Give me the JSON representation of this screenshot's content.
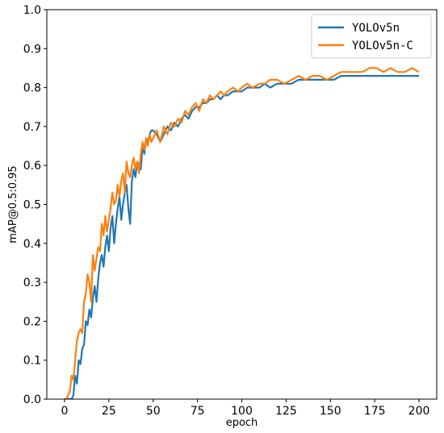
{
  "chart_data": {
    "type": "line",
    "xlabel": "epoch",
    "ylabel": "mAP@0.5:0.95",
    "xlim": [
      -10,
      210
    ],
    "ylim": [
      0.0,
      1.0
    ],
    "xticks": [
      "0",
      "25",
      "50",
      "75",
      "100",
      "125",
      "150",
      "175",
      "200"
    ],
    "yticks": [
      "0.0",
      "0.1",
      "0.2",
      "0.3",
      "0.4",
      "0.5",
      "0.6",
      "0.7",
      "0.8",
      "0.9",
      "1.0"
    ],
    "grid": false,
    "legend_position": "top-right",
    "series": [
      {
        "name": "YOLOv5n",
        "color": "#1f77b4",
        "points": [
          [
            0,
            0.0
          ],
          [
            2,
            0.0
          ],
          [
            3,
            0.0
          ],
          [
            4,
            0.0
          ],
          [
            5,
            0.01
          ],
          [
            6,
            0.06
          ],
          [
            7,
            0.04
          ],
          [
            8,
            0.1
          ],
          [
            9,
            0.09
          ],
          [
            10,
            0.13
          ],
          [
            11,
            0.14
          ],
          [
            12,
            0.2
          ],
          [
            13,
            0.19
          ],
          [
            14,
            0.23
          ],
          [
            15,
            0.21
          ],
          [
            16,
            0.26
          ],
          [
            17,
            0.29
          ],
          [
            18,
            0.25
          ],
          [
            19,
            0.31
          ],
          [
            20,
            0.35
          ],
          [
            21,
            0.37
          ],
          [
            22,
            0.34
          ],
          [
            23,
            0.39
          ],
          [
            24,
            0.42
          ],
          [
            25,
            0.38
          ],
          [
            26,
            0.44
          ],
          [
            27,
            0.47
          ],
          [
            28,
            0.4
          ],
          [
            29,
            0.45
          ],
          [
            30,
            0.49
          ],
          [
            31,
            0.52
          ],
          [
            32,
            0.46
          ],
          [
            33,
            0.5
          ],
          [
            34,
            0.53
          ],
          [
            35,
            0.55
          ],
          [
            36,
            0.49
          ],
          [
            37,
            0.45
          ],
          [
            38,
            0.56
          ],
          [
            39,
            0.59
          ],
          [
            40,
            0.57
          ],
          [
            41,
            0.61
          ],
          [
            42,
            0.6
          ],
          [
            43,
            0.59
          ],
          [
            44,
            0.65
          ],
          [
            45,
            0.63
          ],
          [
            46,
            0.67
          ],
          [
            47,
            0.66
          ],
          [
            48,
            0.68
          ],
          [
            49,
            0.69
          ],
          [
            50,
            0.69
          ],
          [
            52,
            0.68
          ],
          [
            54,
            0.66
          ],
          [
            56,
            0.68
          ],
          [
            58,
            0.7
          ],
          [
            60,
            0.69
          ],
          [
            62,
            0.71
          ],
          [
            64,
            0.7
          ],
          [
            66,
            0.72
          ],
          [
            68,
            0.73
          ],
          [
            70,
            0.72
          ],
          [
            72,
            0.74
          ],
          [
            74,
            0.75
          ],
          [
            76,
            0.75
          ],
          [
            78,
            0.76
          ],
          [
            80,
            0.76
          ],
          [
            82,
            0.77
          ],
          [
            84,
            0.77
          ],
          [
            86,
            0.78
          ],
          [
            88,
            0.77
          ],
          [
            90,
            0.78
          ],
          [
            92,
            0.78
          ],
          [
            95,
            0.79
          ],
          [
            98,
            0.79
          ],
          [
            100,
            0.79
          ],
          [
            103,
            0.8
          ],
          [
            106,
            0.8
          ],
          [
            110,
            0.8
          ],
          [
            113,
            0.81
          ],
          [
            116,
            0.8
          ],
          [
            120,
            0.81
          ],
          [
            124,
            0.81
          ],
          [
            128,
            0.81
          ],
          [
            132,
            0.82
          ],
          [
            136,
            0.82
          ],
          [
            140,
            0.82
          ],
          [
            144,
            0.82
          ],
          [
            148,
            0.82
          ],
          [
            152,
            0.82
          ],
          [
            156,
            0.83
          ],
          [
            160,
            0.83
          ],
          [
            164,
            0.83
          ],
          [
            168,
            0.83
          ],
          [
            172,
            0.83
          ],
          [
            176,
            0.83
          ],
          [
            180,
            0.83
          ],
          [
            184,
            0.83
          ],
          [
            188,
            0.83
          ],
          [
            192,
            0.83
          ],
          [
            196,
            0.83
          ],
          [
            200,
            0.83
          ]
        ]
      },
      {
        "name": "YOLOv5n-C",
        "color": "#ff7f0e",
        "points": [
          [
            0,
            0.0
          ],
          [
            1,
            0.0
          ],
          [
            2,
            0.01
          ],
          [
            3,
            0.02
          ],
          [
            4,
            0.06
          ],
          [
            5,
            0.05
          ],
          [
            6,
            0.1
          ],
          [
            7,
            0.15
          ],
          [
            8,
            0.17
          ],
          [
            9,
            0.18
          ],
          [
            10,
            0.17
          ],
          [
            11,
            0.25
          ],
          [
            12,
            0.27
          ],
          [
            13,
            0.32
          ],
          [
            14,
            0.3
          ],
          [
            15,
            0.25
          ],
          [
            16,
            0.37
          ],
          [
            17,
            0.33
          ],
          [
            18,
            0.36
          ],
          [
            19,
            0.39
          ],
          [
            20,
            0.38
          ],
          [
            21,
            0.45
          ],
          [
            22,
            0.42
          ],
          [
            23,
            0.47
          ],
          [
            24,
            0.43
          ],
          [
            25,
            0.46
          ],
          [
            26,
            0.49
          ],
          [
            27,
            0.53
          ],
          [
            28,
            0.5
          ],
          [
            29,
            0.51
          ],
          [
            30,
            0.55
          ],
          [
            31,
            0.52
          ],
          [
            32,
            0.56
          ],
          [
            33,
            0.58
          ],
          [
            34,
            0.53
          ],
          [
            35,
            0.61
          ],
          [
            36,
            0.58
          ],
          [
            37,
            0.57
          ],
          [
            38,
            0.6
          ],
          [
            39,
            0.62
          ],
          [
            40,
            0.59
          ],
          [
            41,
            0.61
          ],
          [
            42,
            0.58
          ],
          [
            43,
            0.63
          ],
          [
            44,
            0.66
          ],
          [
            45,
            0.64
          ],
          [
            46,
            0.67
          ],
          [
            47,
            0.65
          ],
          [
            48,
            0.68
          ],
          [
            49,
            0.66
          ],
          [
            50,
            0.67
          ],
          [
            52,
            0.69
          ],
          [
            54,
            0.66
          ],
          [
            56,
            0.7
          ],
          [
            58,
            0.68
          ],
          [
            60,
            0.71
          ],
          [
            62,
            0.7
          ],
          [
            64,
            0.72
          ],
          [
            66,
            0.71
          ],
          [
            68,
            0.74
          ],
          [
            70,
            0.73
          ],
          [
            72,
            0.75
          ],
          [
            74,
            0.76
          ],
          [
            76,
            0.74
          ],
          [
            78,
            0.77
          ],
          [
            80,
            0.76
          ],
          [
            82,
            0.78
          ],
          [
            84,
            0.77
          ],
          [
            86,
            0.78
          ],
          [
            88,
            0.79
          ],
          [
            90,
            0.78
          ],
          [
            92,
            0.79
          ],
          [
            95,
            0.8
          ],
          [
            98,
            0.79
          ],
          [
            100,
            0.8
          ],
          [
            103,
            0.81
          ],
          [
            106,
            0.8
          ],
          [
            110,
            0.81
          ],
          [
            113,
            0.81
          ],
          [
            116,
            0.82
          ],
          [
            120,
            0.82
          ],
          [
            124,
            0.81
          ],
          [
            128,
            0.82
          ],
          [
            132,
            0.83
          ],
          [
            136,
            0.82
          ],
          [
            140,
            0.83
          ],
          [
            144,
            0.83
          ],
          [
            148,
            0.82
          ],
          [
            152,
            0.83
          ],
          [
            156,
            0.84
          ],
          [
            160,
            0.84
          ],
          [
            164,
            0.84
          ],
          [
            168,
            0.84
          ],
          [
            172,
            0.85
          ],
          [
            176,
            0.85
          ],
          [
            180,
            0.84
          ],
          [
            184,
            0.85
          ],
          [
            188,
            0.84
          ],
          [
            192,
            0.84
          ],
          [
            196,
            0.85
          ],
          [
            200,
            0.84
          ]
        ]
      }
    ]
  }
}
